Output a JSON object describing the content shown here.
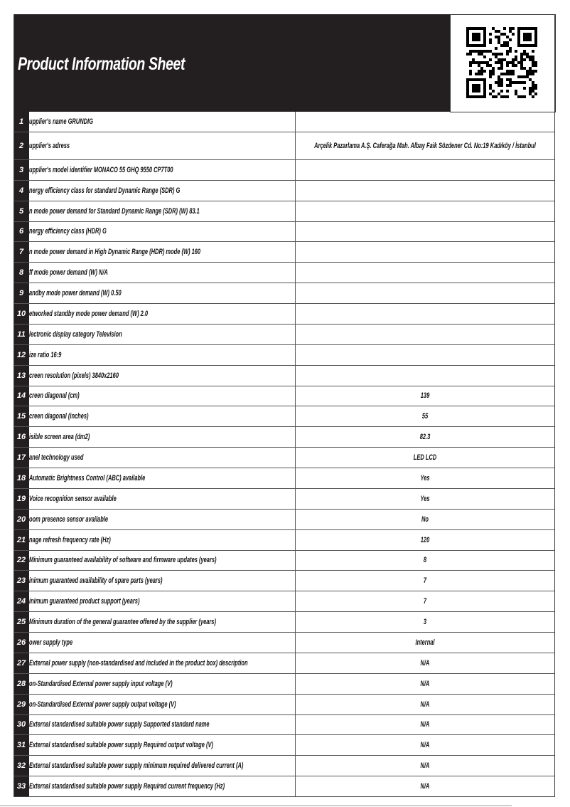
{
  "header": {
    "title": "Product Information Sheet"
  },
  "table": {
    "rows": [
      [
        "1",
        "upplier's name  GRUNDIG",
        ""
      ],
      [
        "2",
        "upplier's adress",
        "Arçelik Pazarlama A.Ş. Caferağa Mah. Albay Faik Sözdener Cd. No:19 Kadıköy / İstanbul"
      ],
      [
        "3",
        "upplier's model identifier MONACO 55 GHQ 9550 CP7T00",
        ""
      ],
      [
        "4",
        "nergy efficiency class for standard Dynamic Range (SDR) G",
        ""
      ],
      [
        "5",
        "n mode power demand for Standard Dynamic Range (SDR) (W) 83.1",
        ""
      ],
      [
        "6",
        "nergy efficiency class (HDR) G",
        ""
      ],
      [
        "7",
        "n mode power demand in High Dynamic Range (HDR) mode  (W) 160",
        ""
      ],
      [
        "8",
        "ff mode power demand (W) N/A",
        ""
      ],
      [
        "9",
        "andby mode power demand  (W) 0.50",
        ""
      ],
      [
        "10",
        "etworked standby mode power demand (W) 2.0",
        ""
      ],
      [
        "11",
        "lectronic display category Television",
        ""
      ],
      [
        "12",
        "ize ratio 16:9",
        ""
      ],
      [
        "13",
        "creen resolution (pixels) 3840x2160",
        ""
      ],
      [
        "14",
        "creen diagonal (cm)",
        "139"
      ],
      [
        "15",
        "creen diagonal (inches)",
        "55"
      ],
      [
        "16",
        "isible screen area (dm2)",
        "82.3"
      ],
      [
        "17",
        "anel technology used",
        "LED LCD"
      ],
      [
        "18",
        "Automatic Brightness Control (ABC) available",
        "Yes"
      ],
      [
        "19",
        "Voice recognition sensor available",
        "Yes"
      ],
      [
        "20",
        "oom presence sensor available",
        "No"
      ],
      [
        "21",
        "nage refresh frequency rate (Hz)",
        "120"
      ],
      [
        "22",
        "Minimum guaranteed availability of software and firmware updates (years)",
        "8"
      ],
      [
        "23",
        "inimum guaranteed availability of spare parts (years)",
        "7"
      ],
      [
        "24",
        "inimum guaranteed product support (years)",
        "7"
      ],
      [
        "25",
        "Minimum duration of the general guarantee offered by the supplier (years)",
        "3"
      ],
      [
        "26",
        "ower supply type",
        "Internal"
      ],
      [
        "27",
        "External power supply (non-standardised and included in the product box) description",
        "N/A"
      ],
      [
        "28",
        "on-Standardised External power supply input voltage (V)",
        "N/A"
      ],
      [
        "29",
        "on-Standardised External power supply output voltage (V)",
        "N/A"
      ],
      [
        "30",
        "External standardised suitable power supply Supported standard name",
        "N/A"
      ],
      [
        "31",
        "External standardised suitable power supply Required output voltage (V)",
        "N/A"
      ],
      [
        "32",
        "External standardised suitable  power supply minimum required delivered current  (A)",
        "N/A"
      ],
      [
        "33",
        "External standardised suitable power supply Required current frequency (Hz)",
        "N/A"
      ]
    ]
  }
}
